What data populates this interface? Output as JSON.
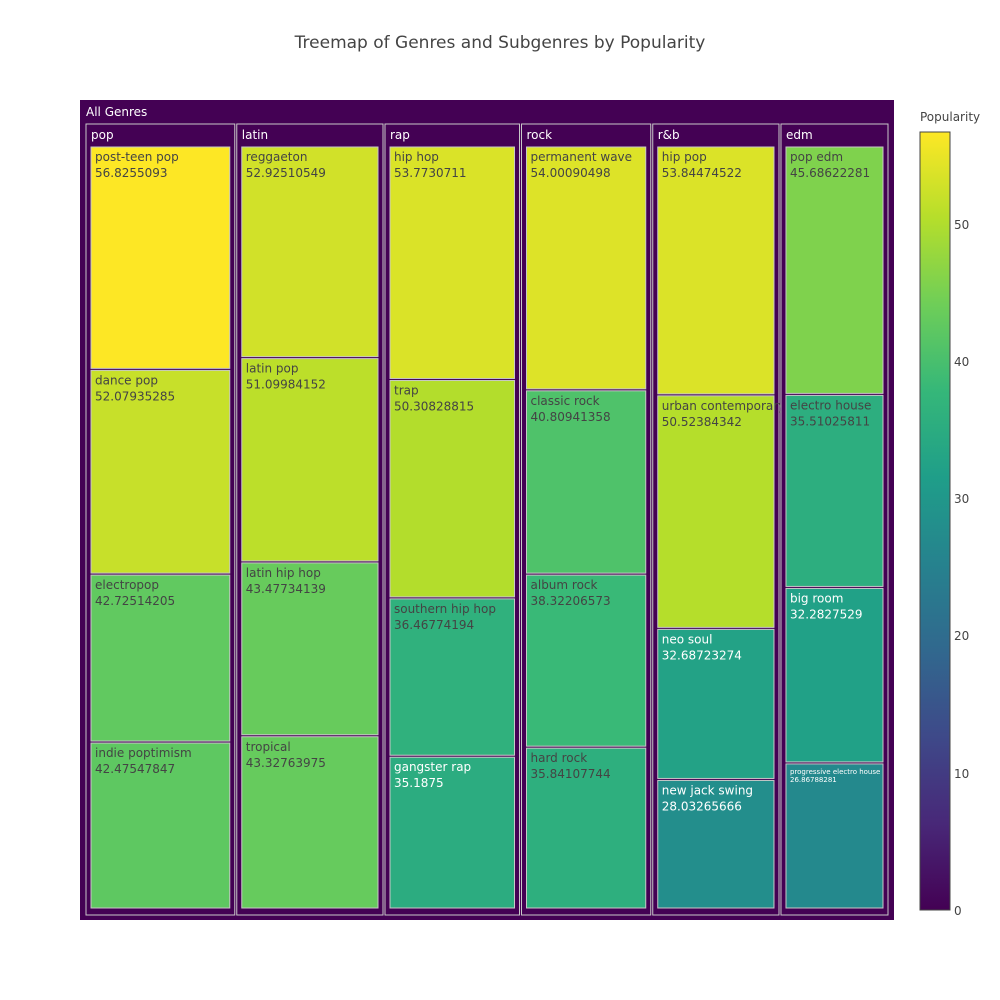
{
  "chart_data": {
    "type": "treemap",
    "title": "Treemap of Genres and Subgenres by Popularity",
    "root": "All Genres",
    "colorbar": {
      "title": "Popularity",
      "range": [
        0,
        56.8255093
      ],
      "ticks": [
        "0",
        "10",
        "20",
        "30",
        "40",
        "50"
      ],
      "tick_values": [
        0,
        10,
        20,
        30,
        40,
        50
      ],
      "colorscale": [
        "#440154",
        "#482878",
        "#3e4989",
        "#31688e",
        "#26828e",
        "#1f9e89",
        "#35b779",
        "#6ece58",
        "#b5de2b",
        "#fde725"
      ]
    },
    "genres": [
      {
        "name": "pop",
        "subgenres": [
          {
            "name": "post-teen pop",
            "label": "56.8255093",
            "value": 56.8255093
          },
          {
            "name": "dance pop",
            "label": "52.07935285",
            "value": 52.07935285
          },
          {
            "name": "electropop",
            "label": "42.72514205",
            "value": 42.72514205
          },
          {
            "name": "indie poptimism",
            "label": "42.47547847",
            "value": 42.47547847
          }
        ]
      },
      {
        "name": "latin",
        "subgenres": [
          {
            "name": "reggaeton",
            "label": "52.92510549",
            "value": 52.92510549
          },
          {
            "name": "latin pop",
            "label": "51.09984152",
            "value": 51.09984152
          },
          {
            "name": "latin hip hop",
            "label": "43.47734139",
            "value": 43.47734139
          },
          {
            "name": "tropical",
            "label": "43.32763975",
            "value": 43.32763975
          }
        ]
      },
      {
        "name": "rap",
        "subgenres": [
          {
            "name": "hip hop",
            "label": "53.7730711",
            "value": 53.7730711
          },
          {
            "name": "trap",
            "label": "50.30828815",
            "value": 50.30828815
          },
          {
            "name": "southern hip hop",
            "label": "36.46774194",
            "value": 36.46774194
          },
          {
            "name": "gangster rap",
            "label": "35.1875",
            "value": 35.1875
          }
        ]
      },
      {
        "name": "rock",
        "subgenres": [
          {
            "name": "permanent wave",
            "label": "54.00090498",
            "value": 54.00090498
          },
          {
            "name": "classic rock",
            "label": "40.80941358",
            "value": 40.80941358
          },
          {
            "name": "album rock",
            "label": "38.32206573",
            "value": 38.32206573
          },
          {
            "name": "hard rock",
            "label": "35.84107744",
            "value": 35.84107744
          }
        ]
      },
      {
        "name": "r&b",
        "subgenres": [
          {
            "name": "hip pop",
            "label": "53.84474522",
            "value": 53.84474522
          },
          {
            "name": "urban contemporary",
            "label": "50.52384342",
            "value": 50.52384342
          },
          {
            "name": "neo soul",
            "label": "32.68723274",
            "value": 32.68723274
          },
          {
            "name": "new jack swing",
            "label": "28.03265666",
            "value": 28.03265666
          }
        ]
      },
      {
        "name": "edm",
        "subgenres": [
          {
            "name": "pop edm",
            "label": "45.68622281",
            "value": 45.68622281
          },
          {
            "name": "electro house",
            "label": "35.51025811",
            "value": 35.51025811
          },
          {
            "name": "big room",
            "label": "32.2827529",
            "value": 32.2827529
          },
          {
            "name": "progressive electro house",
            "label": "26.86788281",
            "value": 26.86788281
          }
        ]
      }
    ]
  }
}
